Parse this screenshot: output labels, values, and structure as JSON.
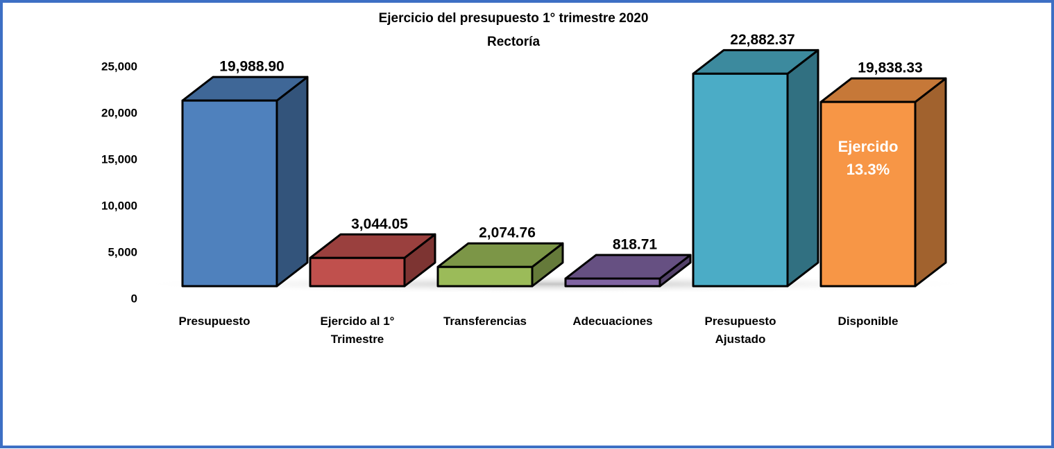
{
  "chart_data": {
    "type": "bar3d",
    "title": "Ejercicio del presupuesto 1° trimestre 2020",
    "subtitle": "Rectoría",
    "categories": [
      "Presupuesto",
      "Ejercido al 1° Trimestre",
      "Transferencias",
      "Adecuaciones",
      "Presupuesto Ajustado",
      "Disponible"
    ],
    "values": [
      19988.9,
      3044.05,
      2074.76,
      818.71,
      22882.37,
      19838.33
    ],
    "value_labels": [
      "19,988.90",
      "3,044.05",
      "2,074.76",
      "818.71",
      "22,882.37",
      "19,838.33"
    ],
    "colors": [
      "#4f81bd",
      "#c0504d",
      "#9bbb59",
      "#8064a2",
      "#4bacc6",
      "#f79646"
    ],
    "ylim": [
      0,
      25000
    ],
    "yticks": [
      0,
      {
        "value": 5000,
        "label": "5,000"
      },
      {
        "value": 10000,
        "label": "10,000"
      },
      {
        "value": 15000,
        "label": "15,000"
      },
      {
        "value": 20000,
        "label": "20,000"
      },
      {
        "value": 25000,
        "label": "25,000"
      }
    ],
    "annotation": [
      "Ejercido",
      "13.3%"
    ]
  }
}
